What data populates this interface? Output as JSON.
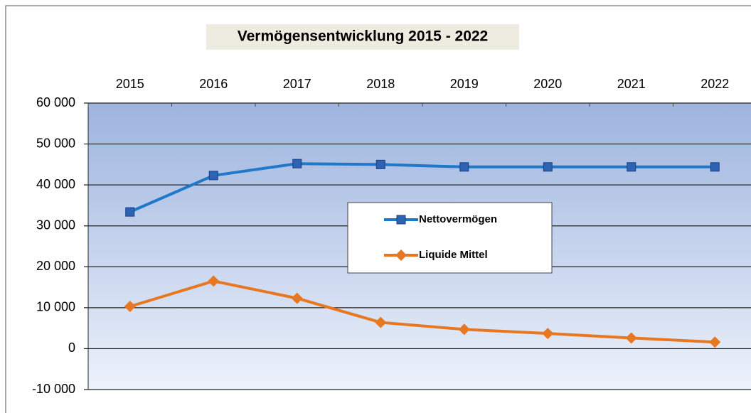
{
  "chart_data": {
    "type": "line",
    "title": "Vermögensentwicklung 2015 - 2022",
    "categories": [
      "2015",
      "2016",
      "2017",
      "2018",
      "2019",
      "2020",
      "2021",
      "2022"
    ],
    "series": [
      {
        "name": "Nettovermögen",
        "color": "#1f78c8",
        "marker": "square",
        "values": [
          33400,
          42300,
          45200,
          45000,
          44400,
          44400,
          44400,
          44400
        ]
      },
      {
        "name": "Liquide Mittel",
        "color": "#e87722",
        "marker": "diamond",
        "values": [
          10300,
          16500,
          12300,
          6400,
          4700,
          3700,
          2600,
          1600
        ]
      }
    ],
    "ylim": [
      -10000,
      60000
    ],
    "yticks": [
      {
        "value": -10000,
        "label": "-10 000"
      },
      0,
      {
        "value": 10000,
        "label": "10 000"
      },
      {
        "value": 20000,
        "label": "20 000"
      },
      {
        "value": 30000,
        "label": "30 000"
      },
      {
        "value": 40000,
        "label": "40 000"
      },
      {
        "value": 50000,
        "label": "50 000"
      },
      {
        "value": 60000,
        "label": "60 000"
      }
    ],
    "grid": true
  }
}
